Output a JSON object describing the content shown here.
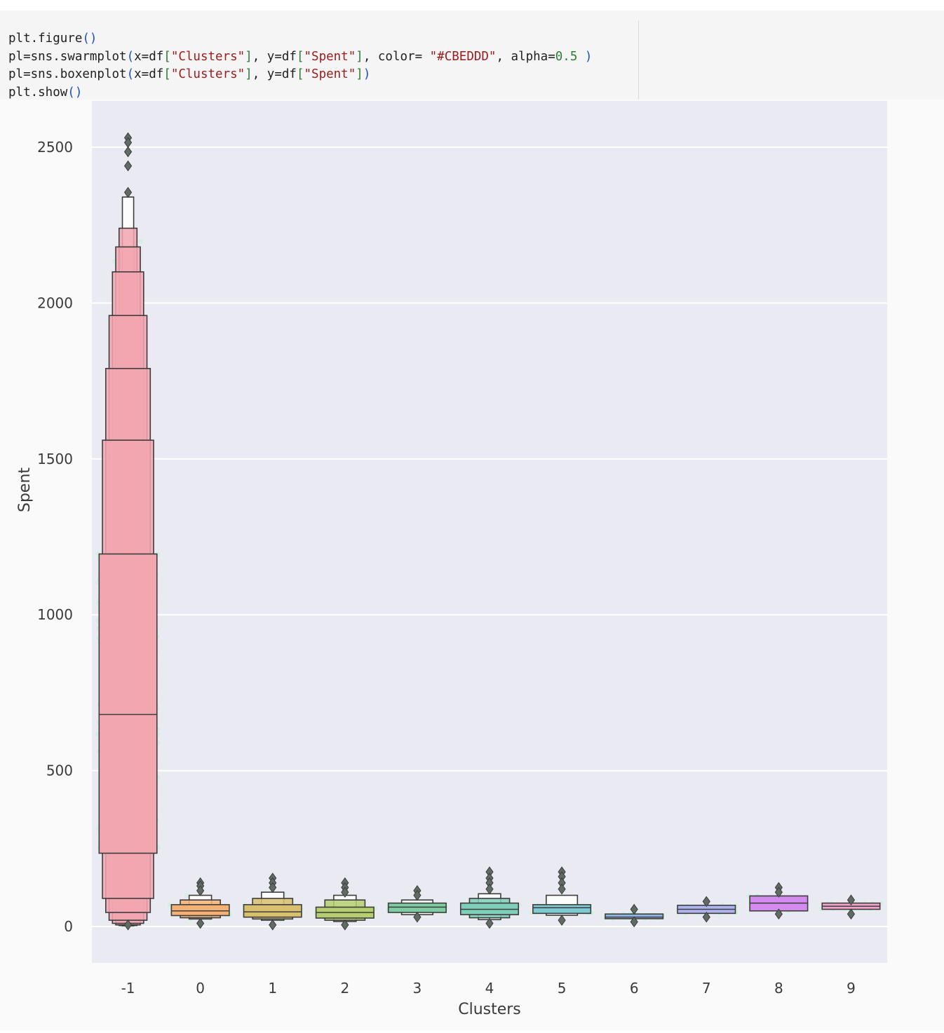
{
  "code_cell": {
    "lines": [
      {
        "parts": [
          {
            "t": "plt.figure",
            "c": "fn"
          },
          {
            "t": "()",
            "c": "paren"
          }
        ]
      },
      {
        "parts": [
          {
            "t": "pl=sns.swarmplot",
            "c": "fn"
          },
          {
            "t": "(",
            "c": "paren"
          },
          {
            "t": "x=df",
            "c": "fn"
          },
          {
            "t": "[",
            "c": "brk"
          },
          {
            "t": "\"Clusters\"",
            "c": "str"
          },
          {
            "t": "]",
            "c": "brk"
          },
          {
            "t": ", y=df",
            "c": "fn"
          },
          {
            "t": "[",
            "c": "brk"
          },
          {
            "t": "\"Spent\"",
            "c": "str"
          },
          {
            "t": "]",
            "c": "brk"
          },
          {
            "t": ", color= ",
            "c": "fn"
          },
          {
            "t": "\"#CBEDDD\"",
            "c": "str"
          },
          {
            "t": ", alpha=",
            "c": "fn"
          },
          {
            "t": "0.5",
            "c": "num"
          },
          {
            "t": " )",
            "c": "paren"
          }
        ]
      },
      {
        "parts": [
          {
            "t": "pl=sns.boxenplot",
            "c": "fn"
          },
          {
            "t": "(",
            "c": "paren"
          },
          {
            "t": "x=df",
            "c": "fn"
          },
          {
            "t": "[",
            "c": "brk"
          },
          {
            "t": "\"Clusters\"",
            "c": "str"
          },
          {
            "t": "]",
            "c": "brk"
          },
          {
            "t": ", y=df",
            "c": "fn"
          },
          {
            "t": "[",
            "c": "brk"
          },
          {
            "t": "\"Spent\"",
            "c": "str"
          },
          {
            "t": "]",
            "c": "brk"
          },
          {
            "t": ")",
            "c": "paren"
          }
        ]
      },
      {
        "parts": [
          {
            "t": "plt.show",
            "c": "fn"
          },
          {
            "t": "()",
            "c": "paren"
          }
        ]
      }
    ]
  },
  "chart_data": {
    "type": "boxen",
    "xlabel": "Clusters",
    "ylabel": "Spent",
    "ylim": [
      -115,
      2650
    ],
    "yticks": [
      0,
      500,
      1000,
      1500,
      2000,
      2500
    ],
    "grid": true,
    "background": "#EAEAF2",
    "swarm_color": "#CBEDDD",
    "swarm_alpha": 0.5,
    "categories": [
      "-1",
      "0",
      "1",
      "2",
      "3",
      "4",
      "5",
      "6",
      "7",
      "8",
      "9"
    ],
    "colors": [
      "#F2A6B0",
      "#F5B173",
      "#D9C06E",
      "#B5CE6E",
      "#7FCBA2",
      "#7ECFBA",
      "#7FC9D2",
      "#8FB6E6",
      "#AFB4F0",
      "#D38BEF",
      "#F2A3CB"
    ],
    "series": [
      {
        "category": "-1",
        "median": 680,
        "boxes": [
          [
            235,
            1195
          ],
          [
            90,
            1560
          ],
          [
            45,
            1790
          ],
          [
            20,
            1960
          ],
          [
            10,
            2100
          ],
          [
            5,
            2180
          ],
          [
            3,
            2240
          ],
          [
            2,
            2340
          ]
        ],
        "outliers": [
          2530,
          2515,
          2485,
          2440,
          2355,
          5
        ]
      },
      {
        "category": "0",
        "median": 50,
        "boxes": [
          [
            35,
            70
          ],
          [
            28,
            85
          ],
          [
            24,
            100
          ]
        ],
        "outliers": [
          140,
          130,
          115,
          10
        ]
      },
      {
        "category": "1",
        "median": 47,
        "boxes": [
          [
            30,
            70
          ],
          [
            24,
            90
          ],
          [
            20,
            110
          ]
        ],
        "outliers": [
          155,
          140,
          125,
          5
        ]
      },
      {
        "category": "2",
        "median": 45,
        "boxes": [
          [
            27,
            62
          ],
          [
            20,
            85
          ],
          [
            16,
            100
          ]
        ],
        "outliers": [
          140,
          125,
          110,
          5
        ]
      },
      {
        "category": "3",
        "median": 62,
        "boxes": [
          [
            45,
            75
          ],
          [
            38,
            85
          ]
        ],
        "outliers": [
          115,
          100,
          30
        ]
      },
      {
        "category": "4",
        "median": 55,
        "boxes": [
          [
            38,
            75
          ],
          [
            28,
            90
          ],
          [
            22,
            105
          ]
        ],
        "outliers": [
          175,
          155,
          140,
          120,
          10
        ]
      },
      {
        "category": "5",
        "median": 60,
        "boxes": [
          [
            42,
            70
          ],
          [
            36,
            100
          ]
        ],
        "outliers": [
          175,
          160,
          140,
          120,
          20
        ]
      },
      {
        "category": "6",
        "median": 30,
        "boxes": [
          [
            25,
            40
          ]
        ],
        "outliers": [
          55,
          15
        ]
      },
      {
        "category": "7",
        "median": 55,
        "boxes": [
          [
            42,
            68
          ]
        ],
        "outliers": [
          80,
          30
        ]
      },
      {
        "category": "8",
        "median": 75,
        "boxes": [
          [
            50,
            98
          ]
        ],
        "outliers": [
          125,
          110,
          40
        ]
      },
      {
        "category": "9",
        "median": 65,
        "boxes": [
          [
            55,
            75
          ]
        ],
        "outliers": [
          85,
          40
        ]
      }
    ]
  }
}
